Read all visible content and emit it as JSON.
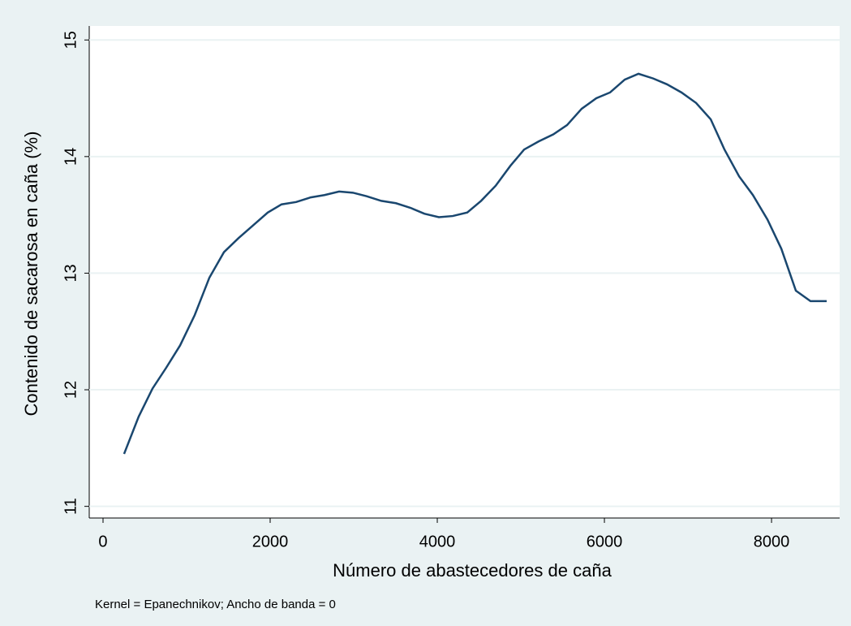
{
  "chart_data": {
    "type": "line",
    "x_label": "Número de abastecedores de caña",
    "y_label": "Contenido de sacarosa en caña (%)",
    "note": "Kernel = Epanechnikov; Ancho de banda = 0",
    "x": [
      252,
      427,
      592,
      757,
      922,
      1097,
      1272,
      1447,
      1621,
      1796,
      1971,
      2136,
      2311,
      2485,
      2650,
      2825,
      2990,
      3155,
      3330,
      3505,
      3680,
      3845,
      4019,
      4184,
      4359,
      4524,
      4699,
      4874,
      5039,
      5214,
      5388,
      5553,
      5728,
      5903,
      6068,
      6243,
      6408,
      6583,
      6748,
      6922,
      7097,
      7272,
      7437,
      7612,
      7777,
      7951,
      8117,
      8291,
      8466,
      8660
    ],
    "series": [
      {
        "color": "#1a476f",
        "values": [
          11.45,
          11.77,
          12.01,
          12.19,
          12.38,
          12.64,
          12.96,
          13.18,
          13.3,
          13.41,
          13.52,
          13.59,
          13.61,
          13.65,
          13.67,
          13.7,
          13.69,
          13.66,
          13.62,
          13.6,
          13.56,
          13.51,
          13.48,
          13.49,
          13.52,
          13.62,
          13.75,
          13.92,
          14.06,
          14.13,
          14.19,
          14.27,
          14.41,
          14.5,
          14.55,
          14.66,
          14.71,
          14.67,
          14.62,
          14.55,
          14.46,
          14.32,
          14.06,
          13.83,
          13.67,
          13.46,
          13.21,
          12.85,
          12.76,
          12.76
        ]
      }
    ],
    "xlim": [
      -165,
      8815
    ],
    "ylim": [
      10.9,
      15.12
    ],
    "xticks": [
      0,
      2000,
      4000,
      6000,
      8000
    ],
    "yticks": [
      11,
      12,
      13,
      14,
      15
    ],
    "grid": true
  }
}
